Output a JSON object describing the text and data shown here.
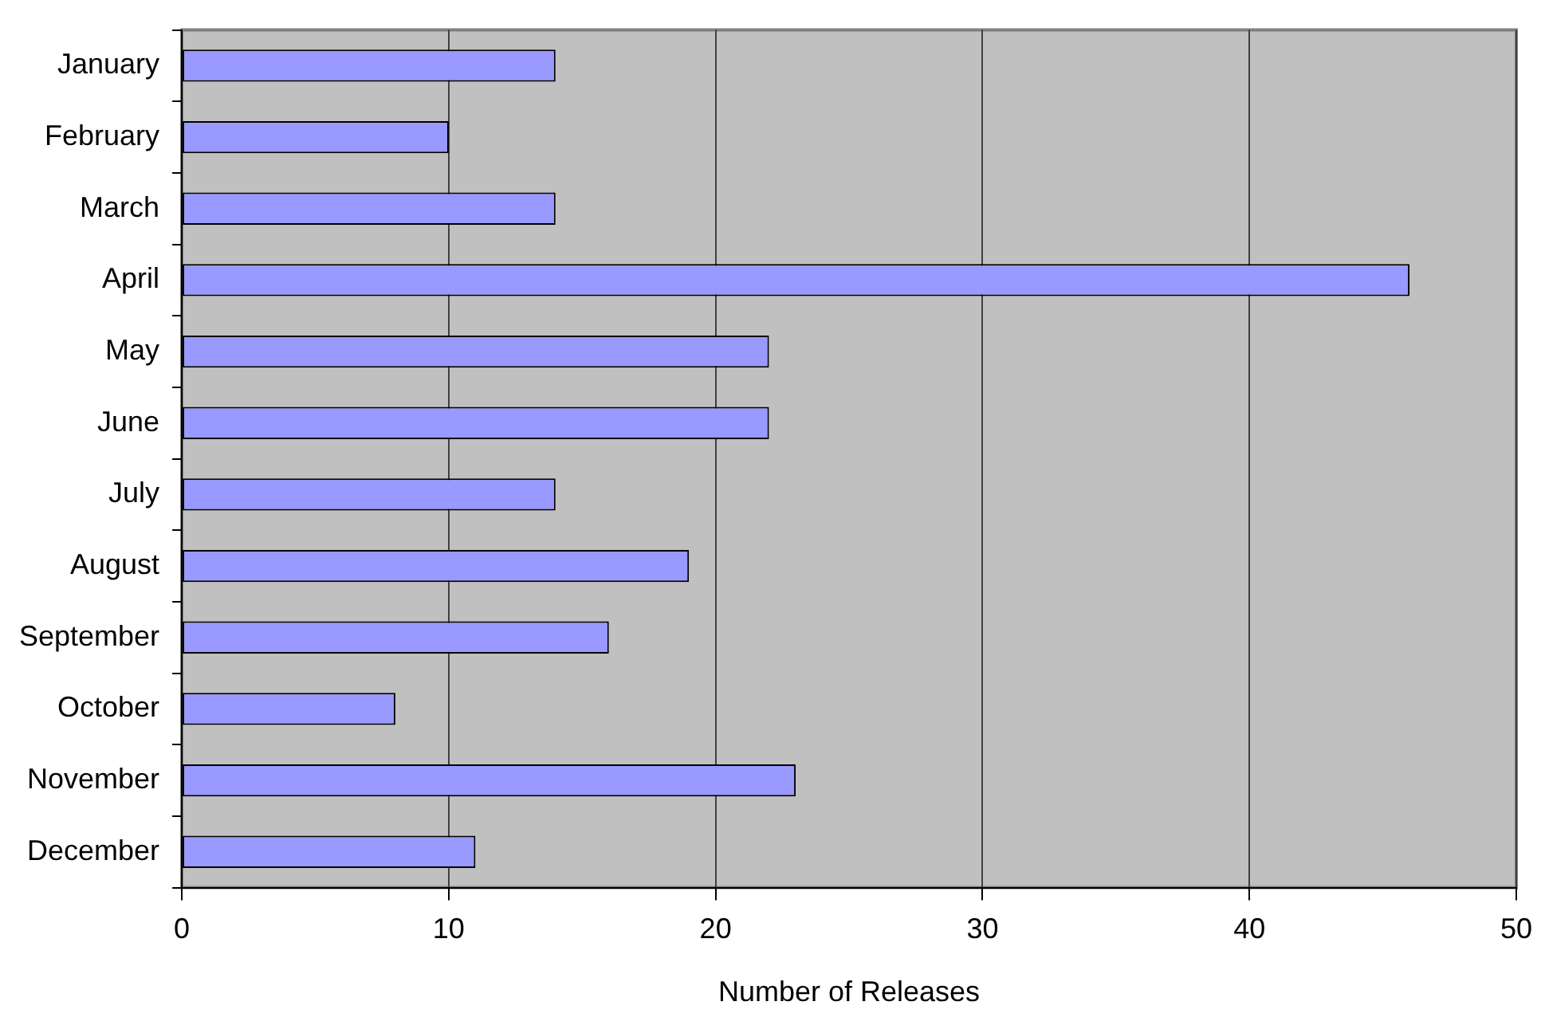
{
  "chart_data": {
    "type": "bar",
    "orientation": "horizontal",
    "xlabel": "Number of Releases",
    "categories": [
      "January",
      "February",
      "March",
      "April",
      "May",
      "June",
      "July",
      "August",
      "September",
      "October",
      "November",
      "December"
    ],
    "values": [
      14,
      10,
      14,
      46,
      22,
      22,
      14,
      19,
      16,
      8,
      23,
      11
    ],
    "color": "#9999ff",
    "xlim": [
      0,
      50
    ],
    "xticks": [
      0,
      10,
      20,
      30,
      40,
      50
    ],
    "grid": "x",
    "legend": false
  }
}
